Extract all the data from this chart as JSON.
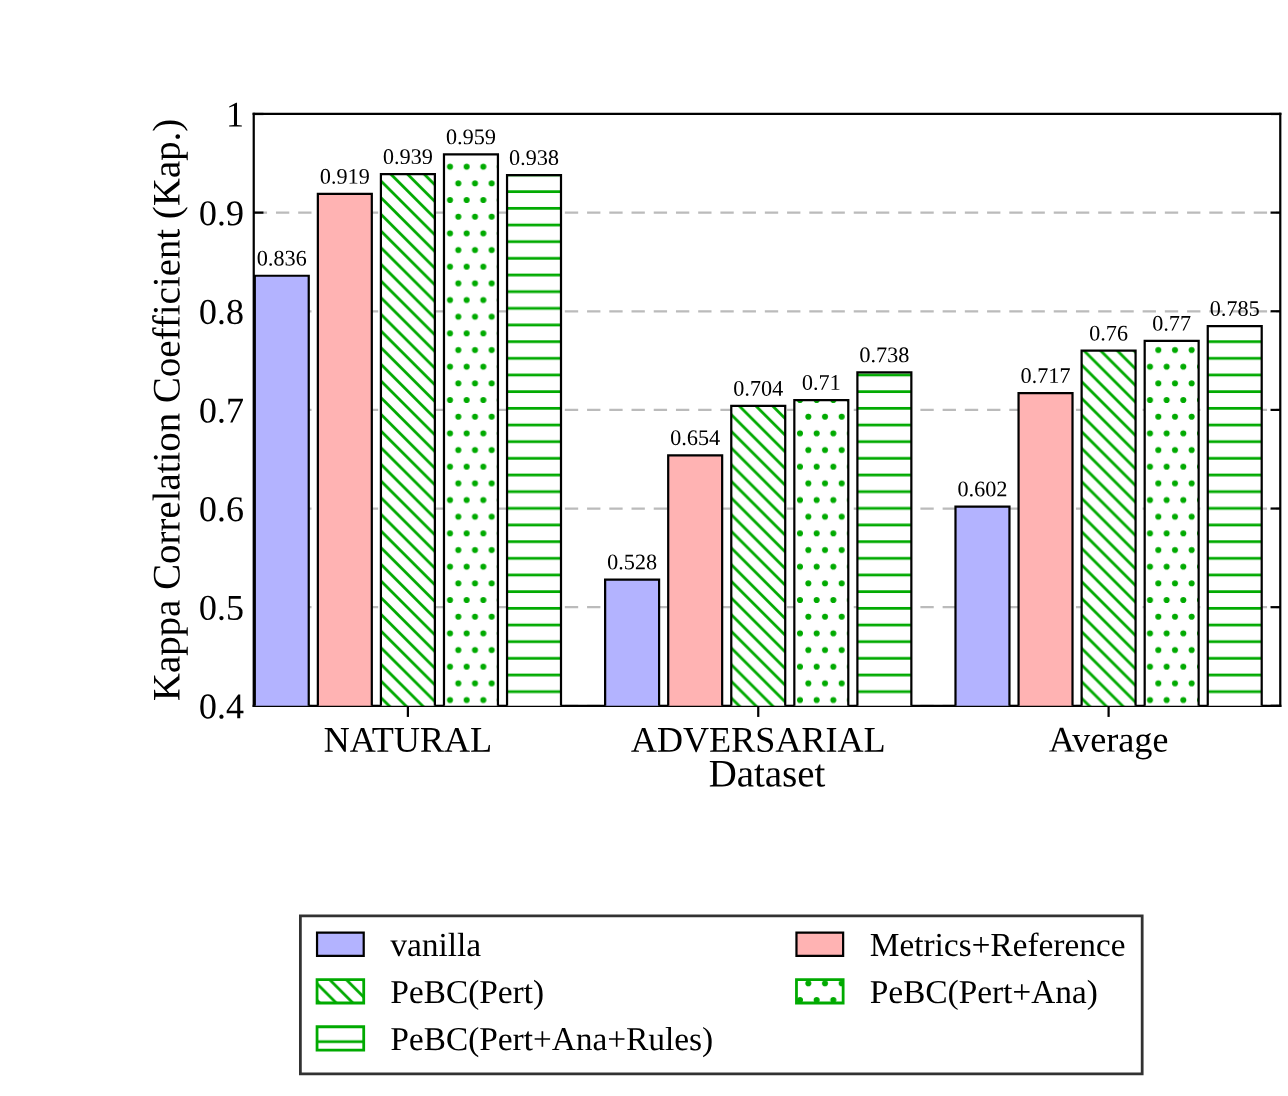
{
  "chart_data": {
    "type": "bar",
    "xlabel": "Dataset",
    "ylabel": "Kappa Correlation Coefficient (Kap.)",
    "categories": [
      "NATURAL",
      "ADVERSARIAL",
      "Average"
    ],
    "series": [
      {
        "name": "vanilla",
        "color": "#b3b3ff",
        "values": [
          0.836,
          0.528,
          0.602
        ]
      },
      {
        "name": "Metrics+Reference",
        "color": "#ffb3b3",
        "values": [
          0.919,
          0.654,
          0.717
        ]
      },
      {
        "name": "PeBC(Pert)",
        "color": "#00aa00",
        "values": [
          0.939,
          0.704,
          0.76
        ]
      },
      {
        "name": "PeBC(Pert+Ana)",
        "color": "#00aa00",
        "values": [
          0.959,
          0.71,
          0.77
        ]
      },
      {
        "name": "PeBC(Pert+Ana+Rules)",
        "color": "#00aa00",
        "values": [
          0.938,
          0.738,
          0.785
        ]
      }
    ],
    "ylim": [
      0.4,
      1
    ],
    "yticks": [
      0.4,
      0.5,
      0.6,
      0.7,
      0.8,
      0.9,
      1
    ],
    "grid": "y",
    "legend": "bottom",
    "data_labels": true
  }
}
